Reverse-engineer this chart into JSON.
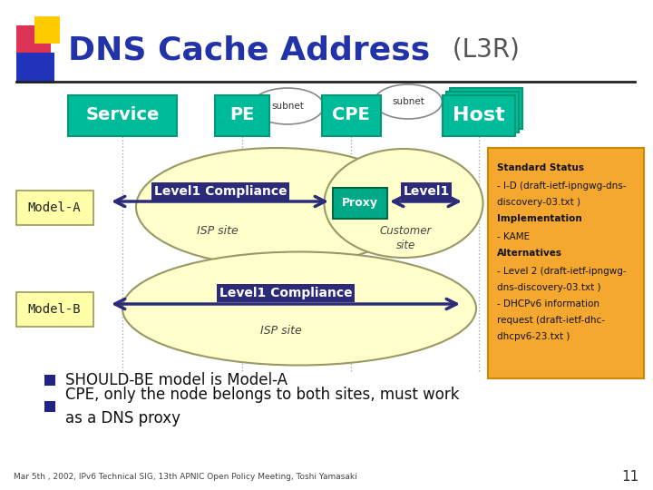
{
  "title_main": "DNS Cache Address",
  "title_sub": " (L3R)",
  "bg_color": "#ffffff",
  "teal": "#00bb99",
  "teal_dark": "#009977",
  "arrow_color": "#2b2b7a",
  "ellipse_color": "#ffffcc",
  "ellipse_ec": "#999966",
  "proxy_fc": "#00aa88",
  "sidebar_bg": "#f5a830",
  "sidebar_ec": "#cc8800",
  "model_label_fc": "#ffffaa",
  "model_label_ec": "#999955",
  "footer_text": "Mar 5th , 2002, IPv6 Technical SIG, 13th APNIC Open Policy Meeting, Toshi Yamasaki",
  "page_num": "11",
  "bullet1": "SHOULD-BE model is Model-A",
  "bullet2": "CPE, only the node belongs to both sites, must work\nas a DNS proxy"
}
